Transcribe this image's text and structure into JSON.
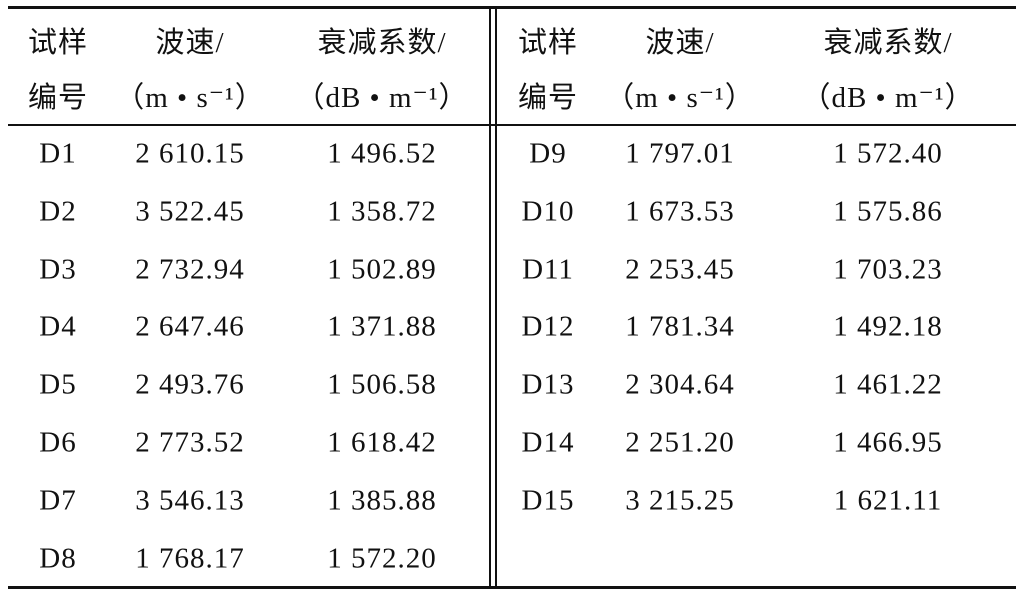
{
  "table": {
    "halves": [
      {
        "header": [
          [
            "试样",
            "编号"
          ],
          [
            "波速/",
            "（m • s⁻¹）"
          ],
          [
            "衰减系数/",
            "（dB • m⁻¹）"
          ]
        ],
        "rows": [
          [
            "D1",
            "2 610.15",
            "1 496.52"
          ],
          [
            "D2",
            "3 522.45",
            "1 358.72"
          ],
          [
            "D3",
            "2 732.94",
            "1 502.89"
          ],
          [
            "D4",
            "2 647.46",
            "1 371.88"
          ],
          [
            "D5",
            "2 493.76",
            "1 506.58"
          ],
          [
            "D6",
            "2 773.52",
            "1 618.42"
          ],
          [
            "D7",
            "3 546.13",
            "1 385.88"
          ],
          [
            "D8",
            "1 768.17",
            "1 572.20"
          ]
        ]
      },
      {
        "header": [
          [
            "试样",
            "编号"
          ],
          [
            "波速/",
            "（m • s⁻¹）"
          ],
          [
            "衰减系数/",
            "（dB • m⁻¹）"
          ]
        ],
        "rows": [
          [
            "D9",
            "1 797.01",
            "1 572.40"
          ],
          [
            "D10",
            "1 673.53",
            "1 575.86"
          ],
          [
            "D11",
            "2 253.45",
            "1 703.23"
          ],
          [
            "D12",
            "1 781.34",
            "1 492.18"
          ],
          [
            "D13",
            "2 304.64",
            "1 461.22"
          ],
          [
            "D14",
            "2 251.20",
            "1 466.95"
          ],
          [
            "D15",
            "3 215.25",
            "1 621.11"
          ]
        ]
      }
    ]
  }
}
